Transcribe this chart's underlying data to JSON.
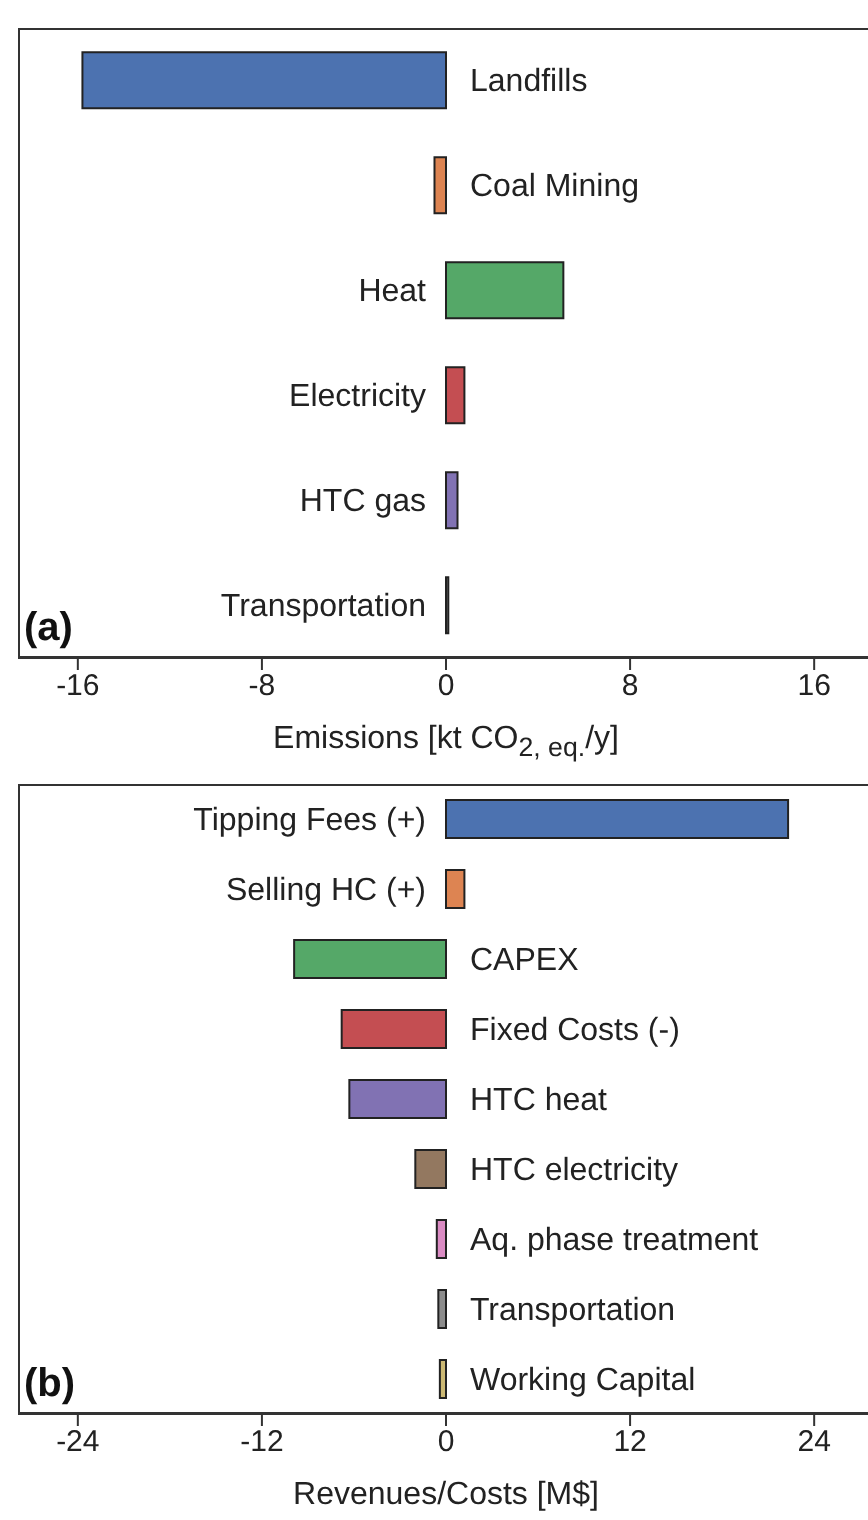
{
  "chart_data": [
    {
      "type": "bar",
      "orientation": "horizontal",
      "categories": [
        "Landfills",
        "Coal Mining",
        "Heat",
        "Electricity",
        "HTC gas",
        "Transportation"
      ],
      "values": [
        -15.8,
        -0.5,
        5.1,
        0.8,
        0.5,
        0.1
      ],
      "colors": [
        "#4c72b0",
        "#dd8452",
        "#55a868",
        "#c44e52",
        "#8172b3",
        "#8c8c8c"
      ],
      "xlim": [
        -18.6,
        18.6
      ],
      "xticks": [
        -16,
        -8,
        0,
        8,
        16
      ],
      "xlabel": "Emissions [kt CO$_{2, eq.}$/y]",
      "annotations": [
        "(a)"
      ]
    },
    {
      "type": "bar",
      "orientation": "horizontal",
      "categories": [
        "Tipping Fees (+)",
        "Selling HC (+)",
        "CAPEX",
        "Fixed Costs (-)",
        "HTC heat",
        "HTC electricity",
        "Aq. phase treatment",
        "Transportation",
        "Working Capital"
      ],
      "values": [
        22.3,
        1.2,
        -9.9,
        -6.8,
        -6.3,
        -2.0,
        -0.6,
        -0.5,
        -0.4
      ],
      "colors": [
        "#4c72b0",
        "#dd8452",
        "#55a868",
        "#c44e52",
        "#8172b3",
        "#937860",
        "#da8bc3",
        "#8c8c8c",
        "#ccb974"
      ],
      "xlim": [
        -27.9,
        27.9
      ],
      "xticks": [
        -24,
        -12,
        0,
        12,
        24
      ],
      "xlabel": "Revenues/Costs [M$]",
      "annotations": [
        "(b)"
      ]
    }
  ]
}
